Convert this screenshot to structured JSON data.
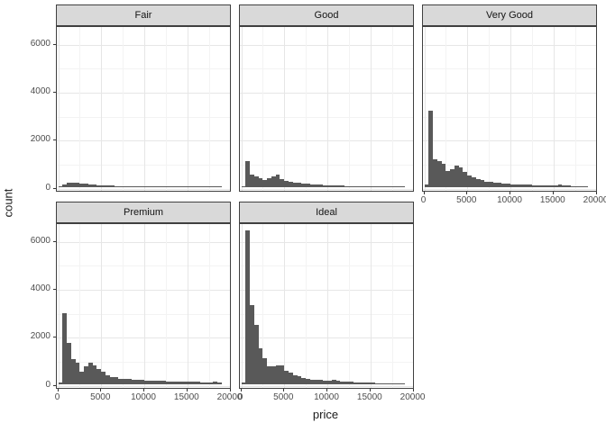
{
  "chart_data": {
    "type": "bar",
    "subtype": "faceted-histogram",
    "title": "",
    "xlabel": "price",
    "ylabel": "count",
    "x_ticks": [
      0,
      5000,
      10000,
      15000,
      20000
    ],
    "y_ticks": [
      0,
      2000,
      4000,
      6000
    ],
    "xlim": [
      -160,
      20160
    ],
    "ylim": [
      -170,
      6730
    ],
    "x_minor_ticks": [
      2500,
      7500,
      12500,
      17500
    ],
    "y_minor_ticks": [
      1000,
      3000,
      5000
    ],
    "bin_start": 0,
    "bin_width": 500,
    "grid": true,
    "legend": "none",
    "facets": [
      {
        "label": "Fair",
        "row": 0,
        "col": 0,
        "x_axis": false,
        "y_axis": true,
        "counts": [
          10,
          110,
          165,
          180,
          165,
          145,
          115,
          92,
          76,
          62,
          55,
          50,
          42,
          36,
          30,
          26,
          22,
          20,
          17,
          15,
          13,
          11,
          10,
          9,
          8,
          7,
          6,
          5,
          5,
          4,
          4,
          3,
          3,
          2,
          2,
          2,
          1,
          1
        ]
      },
      {
        "label": "Good",
        "row": 0,
        "col": 1,
        "x_axis": false,
        "y_axis": false,
        "counts": [
          35,
          1055,
          500,
          425,
          350,
          300,
          370,
          445,
          500,
          325,
          250,
          212,
          186,
          164,
          138,
          127,
          108,
          93,
          82,
          70,
          60,
          52,
          45,
          40,
          35,
          30,
          26,
          23,
          20,
          17,
          15,
          13,
          11,
          9,
          8,
          7,
          6,
          5
        ]
      },
      {
        "label": "Very Good",
        "row": 0,
        "col": 2,
        "x_axis": true,
        "y_axis": false,
        "counts": [
          90,
          3170,
          1160,
          1080,
          950,
          670,
          750,
          900,
          820,
          630,
          470,
          400,
          310,
          270,
          225,
          200,
          175,
          155,
          140,
          125,
          112,
          100,
          92,
          85,
          78,
          72,
          66,
          60,
          56,
          52,
          48,
          95,
          50,
          40,
          34,
          28,
          24,
          20
        ]
      },
      {
        "label": "Premium",
        "row": 1,
        "col": 0,
        "x_axis": true,
        "y_axis": true,
        "counts": [
          60,
          2950,
          1700,
          1050,
          900,
          500,
          720,
          900,
          780,
          620,
          500,
          350,
          300,
          270,
          225,
          205,
          192,
          180,
          168,
          158,
          148,
          140,
          132,
          125,
          118,
          112,
          106,
          100,
          95,
          90,
          85,
          80,
          76,
          72,
          68,
          64,
          90,
          45
        ]
      },
      {
        "label": "Ideal",
        "row": 1,
        "col": 1,
        "x_axis": true,
        "y_axis": false,
        "counts": [
          60,
          6400,
          3300,
          2470,
          1495,
          1060,
          722,
          748,
          785,
          785,
          561,
          460,
          374,
          312,
          250,
          212,
          187,
          170,
          155,
          142,
          130,
          175,
          120,
          105,
          92,
          80,
          70,
          62,
          55,
          48,
          42,
          37,
          32,
          28,
          24,
          20,
          17,
          14
        ]
      }
    ],
    "colors": {
      "bar": "#595959",
      "strip_background": "#d9d9d9",
      "panel_background": "#ffffff",
      "panel_border": "#404040",
      "grid_major": "#e6e6e6",
      "grid_minor": "#f3f3f3",
      "axis_text": "#4d4d4d",
      "title_text": "#1a1a1a"
    }
  }
}
